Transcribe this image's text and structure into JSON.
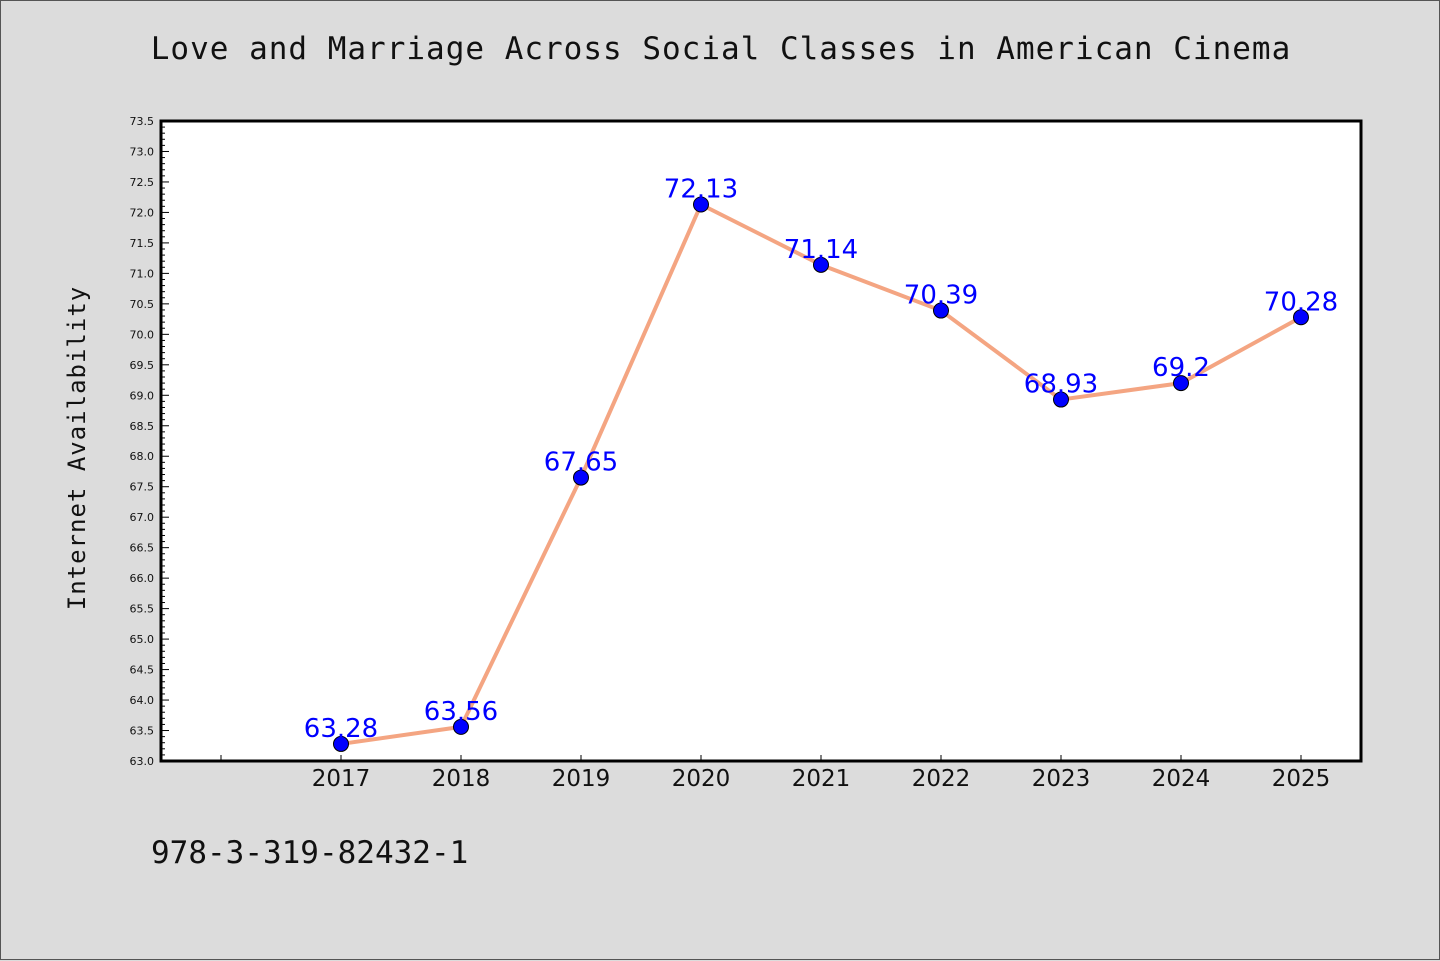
{
  "page": {
    "footer_code": "978-3-319-82432-1"
  },
  "chart_data": {
    "type": "line",
    "title": "Love and Marriage Across Social Classes in American Cinema",
    "xlabel": "",
    "ylabel": "Internet Availability",
    "categories": [
      "2017",
      "2018",
      "2019",
      "2020",
      "2021",
      "2022",
      "2023",
      "2024",
      "2025"
    ],
    "series": [
      {
        "values": [
          63.28,
          63.56,
          67.65,
          72.13,
          71.14,
          70.39,
          68.93,
          69.2,
          70.28
        ],
        "labels": [
          "63.28",
          "63.56",
          "67.65",
          "72.13",
          "71.14",
          "70.39",
          "68.93",
          "69.2",
          "70.28"
        ],
        "line_color": "#f4a582",
        "marker_color": "#0000ff",
        "label_color": "#0000ff"
      }
    ],
    "ylim": [
      63.0,
      73.5
    ],
    "yticks": [
      "63.0",
      "63.5",
      "64.0",
      "64.5",
      "65.0",
      "65.5",
      "66.0",
      "66.5",
      "67.0",
      "67.5",
      "68.0",
      "68.5",
      "69.0",
      "69.5",
      "70.0",
      "70.5",
      "71.0",
      "71.5",
      "72.0",
      "72.5",
      "73.0",
      "73.5"
    ],
    "grid": false,
    "legend": "none",
    "colors": {
      "plot_background": "#ffffff",
      "figure_background": "#dcdcdc",
      "axis": "#000000"
    }
  }
}
